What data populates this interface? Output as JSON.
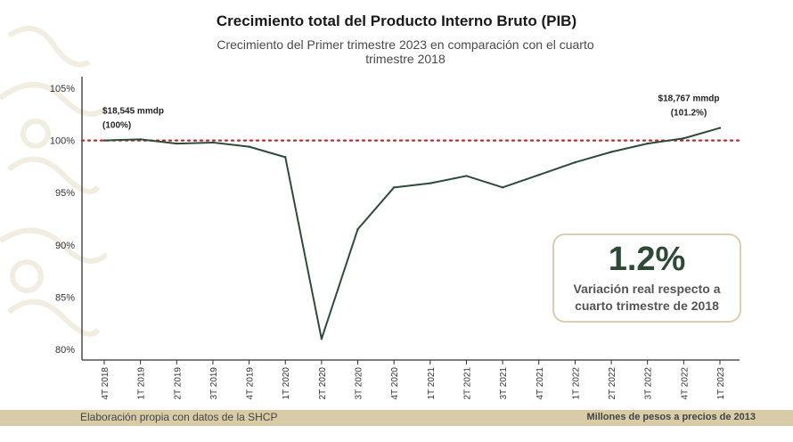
{
  "page": {
    "title": "Crecimiento total del Producto Interno Bruto (PIB)",
    "subtitle": "Crecimiento del Primer trimestre 2023 en comparación con el cuarto trimestre 2018",
    "footer_source": "Elaboración propia con datos de la SHCP",
    "footer_units": "Millones de pesos a precios de 2013"
  },
  "kpi": {
    "value": "1.2%",
    "label": "Variación real respecto a cuarto trimestre de 2018"
  },
  "colors": {
    "line": "#2e4c37",
    "reference_line": "#c0262c",
    "axis": "#333333",
    "footer_bar": "#d8cca8",
    "kpi_border": "#d9ceb0"
  },
  "chart_data": {
    "type": "line",
    "title": "Crecimiento total del Producto Interno Bruto (PIB)",
    "xlabel": "",
    "ylabel": "",
    "ylim": [
      80,
      105
    ],
    "yticks": [
      80,
      85,
      90,
      95,
      100,
      105
    ],
    "ytick_labels": [
      "80%",
      "85%",
      "90%",
      "95%",
      "100%",
      "105%"
    ],
    "reference_line": {
      "value": 100,
      "style": "dotted"
    },
    "categories": [
      "4T 2018",
      "1T 2019",
      "2T 2019",
      "3T 2019",
      "4T 2019",
      "1T 2020",
      "2T 2020",
      "3T 2020",
      "4T 2020",
      "1T 2021",
      "2T 2021",
      "3T 2021",
      "4T 2021",
      "1T 2022",
      "2T 2022",
      "3T 2022",
      "4T 2022",
      "1T 2023"
    ],
    "series": [
      {
        "name": "PIB",
        "values": [
          100.0,
          100.1,
          99.7,
          99.8,
          99.4,
          98.4,
          81.0,
          91.5,
          95.5,
          95.9,
          96.6,
          95.5,
          96.7,
          97.9,
          98.9,
          99.7,
          100.2,
          101.2
        ]
      }
    ],
    "annotations": [
      {
        "category": "4T 2018",
        "line1": "$18,545 mmdp",
        "line2": "(100%)"
      },
      {
        "category": "1T 2023",
        "line1": "$18,767 mmdp",
        "line2": "(101.2%)"
      }
    ],
    "grid": false
  }
}
